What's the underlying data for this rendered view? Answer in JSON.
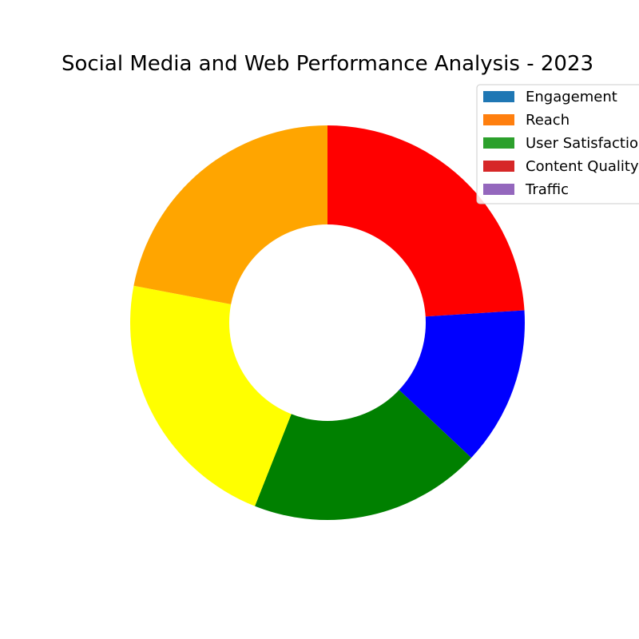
{
  "chart_data": {
    "type": "pie",
    "donut": true,
    "title": "Social Media and Web Performance Analysis - 2023",
    "categories": [
      "Engagement",
      "Reach",
      "User Satisfaction",
      "Content Quality",
      "Traffic"
    ],
    "slices": [
      {
        "label": "Engagement",
        "value": 24,
        "color": "#ff0000"
      },
      {
        "label": "Reach",
        "value": 13,
        "color": "#0000ff"
      },
      {
        "label": "User Satisfaction",
        "value": 19,
        "color": "#008000"
      },
      {
        "label": "Content Quality",
        "value": 22,
        "color": "#ffff00"
      },
      {
        "label": "Traffic",
        "value": 22,
        "color": "#ffa500"
      }
    ],
    "legend": {
      "placement": "top-right",
      "entries": [
        {
          "label": "Engagement",
          "color": "#1f77b4"
        },
        {
          "label": "Reach",
          "color": "#ff7f0e"
        },
        {
          "label": "User Satisfaction",
          "color": "#2ca02c"
        },
        {
          "label": "Content Quality",
          "color": "#d62728"
        },
        {
          "label": "Traffic",
          "color": "#9467bd"
        }
      ]
    }
  }
}
